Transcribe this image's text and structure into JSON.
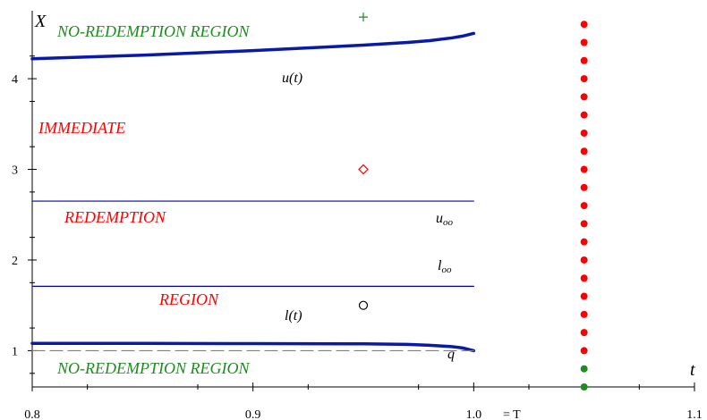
{
  "chart_data": {
    "type": "line",
    "title": "",
    "xlabel": "t",
    "ylabel": "X",
    "xlim": [
      0.8,
      1.1
    ],
    "ylim": [
      0.6,
      4.75
    ],
    "x_ticks": [
      0.8,
      0.9,
      1.0,
      1.1
    ],
    "x_tick_labels": [
      "0.8",
      "0.9",
      "1.0",
      "1.1"
    ],
    "x_tick_suffix": "= T",
    "y_ticks": [
      1,
      2,
      3,
      4
    ],
    "y_tick_labels": [
      "1",
      "2",
      "3",
      "4"
    ],
    "grid": false,
    "colors": {
      "upper_curve": "#0000cc",
      "level_line": "#0000aa",
      "q_line": "#808080",
      "red": "#ff0000",
      "green": "#1e8c1e",
      "black": "#000000"
    },
    "series": [
      {
        "name": "u(t)",
        "style": "thick-line",
        "x": [
          0.8,
          0.85,
          0.9,
          0.95,
          0.97,
          0.98,
          0.99,
          0.995,
          1.0
        ],
        "y": [
          4.22,
          4.26,
          4.31,
          4.37,
          4.4,
          4.42,
          4.45,
          4.47,
          4.5
        ]
      },
      {
        "name": "l(t)",
        "style": "thick-line",
        "x": [
          0.8,
          0.85,
          0.9,
          0.95,
          0.97,
          0.98,
          0.99,
          0.995,
          1.0
        ],
        "y": [
          1.08,
          1.08,
          1.078,
          1.075,
          1.07,
          1.06,
          1.045,
          1.03,
          1.0
        ]
      },
      {
        "name": "u_oo",
        "style": "thin-line",
        "x": [
          0.8,
          1.0
        ],
        "y": [
          2.65,
          2.65
        ]
      },
      {
        "name": "l_oo",
        "style": "thin-line",
        "x": [
          0.8,
          1.0
        ],
        "y": [
          1.71,
          1.71
        ]
      },
      {
        "name": "q",
        "style": "dashed-line",
        "x": [
          0.8,
          1.0
        ],
        "y": [
          1.0,
          1.0
        ]
      }
    ],
    "markers": [
      {
        "shape": "plus",
        "color": "#1e8c1e",
        "x": 0.95,
        "y": 4.68
      },
      {
        "shape": "diamond",
        "color": "#ff0000",
        "x": 0.95,
        "y": 3.0
      },
      {
        "shape": "circle",
        "color": "#000000",
        "x": 0.95,
        "y": 1.5
      }
    ],
    "dot_column": {
      "x": 1.05,
      "red_y": [
        4.6,
        4.4,
        4.2,
        4.0,
        3.8,
        3.6,
        3.4,
        3.2,
        3.0,
        2.8,
        2.6,
        2.4,
        2.2,
        2.0,
        1.8,
        1.6,
        1.4,
        1.2,
        1.0
      ],
      "green_y": [
        0.8,
        0.6
      ]
    },
    "curve_labels": {
      "u": "u(t)",
      "l": "l(t)",
      "q": "q",
      "u_oo_base": "u",
      "u_oo_sub": "oo",
      "l_oo_base": "l",
      "l_oo_sub": "oo"
    },
    "region_labels": {
      "top": "NO-REDEMPTION REGION",
      "immediate": "IMMEDIATE",
      "redemption": "REDEMPTION",
      "region": "REGION",
      "bottom": "NO-REDEMPTION REGION"
    }
  }
}
